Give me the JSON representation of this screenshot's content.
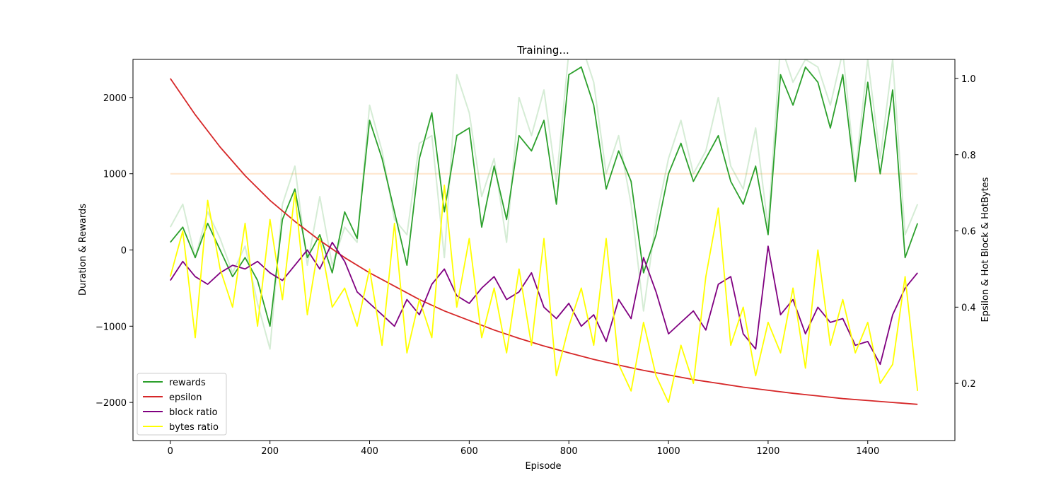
{
  "chart_data": {
    "type": "line",
    "title": "Training...",
    "xlabel": "Episode",
    "ylabel": "Duration & Rewards",
    "y2label": "Epsilon & Hot Block & HotBytes",
    "xlim": [
      -75,
      1575
    ],
    "ylim": [
      -2500,
      2500
    ],
    "y2lim": [
      0.05,
      1.05
    ],
    "x_ticks": [
      0,
      200,
      400,
      600,
      800,
      1000,
      1200,
      1400
    ],
    "y_ticks": [
      -2000,
      -1000,
      0,
      1000,
      2000
    ],
    "y2_ticks": [
      0.2,
      0.4,
      0.6,
      0.8,
      1.0
    ],
    "y2_tick_labels": [
      "0.2",
      "0.4",
      "0.6",
      "0.8",
      "1.0"
    ],
    "legend_position": "lower-left",
    "colors": {
      "rewards": "#2ca02c",
      "rewards_raw": "#2ca02c",
      "epsilon": "#d62728",
      "block_ratio": "#800080",
      "bytes_ratio": "#ffff00",
      "reference": "#ffbf80"
    },
    "legend": [
      {
        "name": "rewards",
        "color": "#2ca02c"
      },
      {
        "name": "epsilon",
        "color": "#d62728"
      },
      {
        "name": "block ratio",
        "color": "#800080"
      },
      {
        "name": "bytes ratio",
        "color": "#ffff00"
      }
    ],
    "reference_line": {
      "y": 1000,
      "x_start": 0,
      "x_end": 1500
    },
    "series": [
      {
        "key": "rewards_raw",
        "axis": "left",
        "opacity": 0.2,
        "x": [
          0,
          25,
          50,
          75,
          100,
          125,
          150,
          175,
          200,
          225,
          250,
          275,
          300,
          325,
          350,
          375,
          400,
          425,
          450,
          475,
          500,
          525,
          550,
          575,
          600,
          625,
          650,
          675,
          700,
          725,
          750,
          775,
          800,
          825,
          850,
          875,
          900,
          925,
          950,
          975,
          1000,
          1025,
          1050,
          1075,
          1100,
          1125,
          1150,
          1175,
          1200,
          1225,
          1250,
          1275,
          1300,
          1325,
          1350,
          1375,
          1400,
          1425,
          1450,
          1475,
          1500
        ],
        "y": [
          300,
          600,
          -100,
          500,
          150,
          -300,
          50,
          -700,
          -1300,
          600,
          1100,
          -200,
          700,
          -200,
          300,
          100,
          1900,
          1300,
          400,
          200,
          1400,
          1500,
          -100,
          2300,
          1800,
          700,
          1200,
          100,
          2000,
          1500,
          2100,
          900,
          2600,
          2700,
          2200,
          1000,
          1500,
          600,
          -800,
          400,
          1200,
          1700,
          1000,
          1300,
          2000,
          1100,
          800,
          1600,
          300,
          2700,
          2200,
          2500,
          2400,
          1900,
          2600,
          1000,
          2500,
          1200,
          2500,
          200,
          600
        ]
      },
      {
        "key": "rewards",
        "axis": "left",
        "opacity": 1,
        "x": [
          0,
          25,
          50,
          75,
          100,
          125,
          150,
          175,
          200,
          225,
          250,
          275,
          300,
          325,
          350,
          375,
          400,
          425,
          450,
          475,
          500,
          525,
          550,
          575,
          600,
          625,
          650,
          675,
          700,
          725,
          750,
          775,
          800,
          825,
          850,
          875,
          900,
          925,
          950,
          975,
          1000,
          1025,
          1050,
          1075,
          1100,
          1125,
          1150,
          1175,
          1200,
          1225,
          1250,
          1275,
          1300,
          1325,
          1350,
          1375,
          1400,
          1425,
          1450,
          1475,
          1500
        ],
        "y": [
          100,
          300,
          -100,
          350,
          0,
          -350,
          -100,
          -400,
          -1000,
          400,
          800,
          -100,
          200,
          -300,
          500,
          150,
          1700,
          1200,
          500,
          -200,
          1200,
          1800,
          500,
          1500,
          1600,
          300,
          1100,
          400,
          1500,
          1300,
          1700,
          600,
          2300,
          2400,
          1900,
          800,
          1300,
          900,
          -300,
          200,
          1000,
          1400,
          900,
          1200,
          1500,
          900,
          600,
          1100,
          200,
          2300,
          1900,
          2400,
          2200,
          1600,
          2300,
          900,
          2200,
          1000,
          2100,
          -100,
          350
        ]
      },
      {
        "key": "epsilon",
        "axis": "right",
        "opacity": 1,
        "x": [
          0,
          50,
          100,
          150,
          200,
          250,
          300,
          350,
          400,
          450,
          500,
          550,
          600,
          650,
          700,
          750,
          800,
          850,
          900,
          950,
          1000,
          1050,
          1100,
          1150,
          1200,
          1250,
          1300,
          1350,
          1400,
          1450,
          1500
        ],
        "y": [
          1.0,
          0.905,
          0.82,
          0.745,
          0.68,
          0.625,
          0.575,
          0.53,
          0.49,
          0.455,
          0.42,
          0.39,
          0.365,
          0.34,
          0.318,
          0.298,
          0.28,
          0.263,
          0.248,
          0.234,
          0.222,
          0.21,
          0.2,
          0.19,
          0.182,
          0.174,
          0.167,
          0.16,
          0.155,
          0.15,
          0.145
        ]
      },
      {
        "key": "block_ratio",
        "axis": "right",
        "opacity": 1,
        "x": [
          0,
          25,
          50,
          75,
          100,
          125,
          150,
          175,
          200,
          225,
          250,
          275,
          300,
          325,
          350,
          375,
          400,
          425,
          450,
          475,
          500,
          525,
          550,
          575,
          600,
          625,
          650,
          675,
          700,
          725,
          750,
          775,
          800,
          825,
          850,
          875,
          900,
          925,
          950,
          975,
          1000,
          1025,
          1050,
          1075,
          1100,
          1125,
          1150,
          1175,
          1200,
          1225,
          1250,
          1275,
          1300,
          1325,
          1350,
          1375,
          1400,
          1425,
          1450,
          1475,
          1500
        ],
        "y": [
          0.47,
          0.52,
          0.48,
          0.46,
          0.49,
          0.51,
          0.5,
          0.52,
          0.49,
          0.47,
          0.51,
          0.55,
          0.5,
          0.57,
          0.52,
          0.44,
          0.41,
          0.38,
          0.35,
          0.42,
          0.38,
          0.46,
          0.5,
          0.43,
          0.41,
          0.45,
          0.48,
          0.42,
          0.44,
          0.49,
          0.4,
          0.37,
          0.41,
          0.35,
          0.38,
          0.31,
          0.42,
          0.37,
          0.53,
          0.44,
          0.33,
          0.36,
          0.39,
          0.34,
          0.46,
          0.48,
          0.33,
          0.29,
          0.56,
          0.38,
          0.42,
          0.33,
          0.4,
          0.36,
          0.37,
          0.3,
          0.31,
          0.25,
          0.38,
          0.45,
          0.49
        ]
      },
      {
        "key": "bytes_ratio",
        "axis": "right",
        "opacity": 1,
        "x": [
          0,
          25,
          50,
          75,
          100,
          125,
          150,
          175,
          200,
          225,
          250,
          275,
          300,
          325,
          350,
          375,
          400,
          425,
          450,
          475,
          500,
          525,
          550,
          575,
          600,
          625,
          650,
          675,
          700,
          725,
          750,
          775,
          800,
          825,
          850,
          875,
          900,
          925,
          950,
          975,
          1000,
          1025,
          1050,
          1075,
          1100,
          1125,
          1150,
          1175,
          1200,
          1225,
          1250,
          1275,
          1300,
          1325,
          1350,
          1375,
          1400,
          1425,
          1450,
          1475,
          1500
        ],
        "y": [
          0.48,
          0.6,
          0.32,
          0.68,
          0.5,
          0.4,
          0.62,
          0.35,
          0.63,
          0.42,
          0.7,
          0.38,
          0.58,
          0.4,
          0.45,
          0.35,
          0.5,
          0.3,
          0.62,
          0.28,
          0.42,
          0.32,
          0.72,
          0.4,
          0.58,
          0.32,
          0.45,
          0.28,
          0.5,
          0.3,
          0.58,
          0.22,
          0.35,
          0.45,
          0.3,
          0.58,
          0.25,
          0.18,
          0.36,
          0.22,
          0.15,
          0.3,
          0.2,
          0.48,
          0.66,
          0.3,
          0.4,
          0.22,
          0.36,
          0.28,
          0.45,
          0.24,
          0.55,
          0.3,
          0.42,
          0.28,
          0.36,
          0.2,
          0.25,
          0.48,
          0.18
        ]
      }
    ]
  }
}
